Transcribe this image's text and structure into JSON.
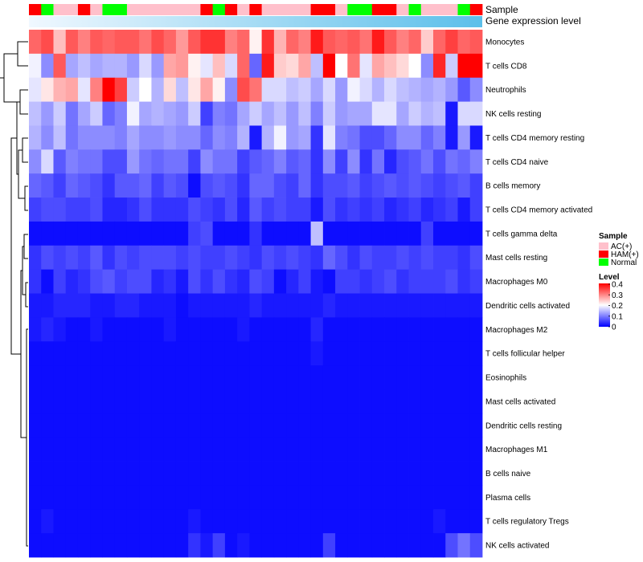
{
  "chart_data": {
    "type": "heatmap",
    "annotation_labels": {
      "sample": "Sample",
      "gene_expression": "Gene expression level"
    },
    "rows": [
      "Monocytes",
      "T cells CD8",
      "Neutrophils",
      "NK cells resting",
      "T cells CD4 memory resting",
      "T cells CD4 naive",
      "B cells memory",
      "T cells CD4 memory activated",
      "T cells gamma delta",
      "Mast cells resting",
      "Macrophages M0",
      "Dendritic cells activated",
      "Macrophages M2",
      "T cells follicular helper",
      "Eosinophils",
      "Mast cells activated",
      "Dendritic cells resting",
      "Macrophages M1",
      "B cells naive",
      "Plasma cells",
      "T cells regulatory  Tregs",
      "NK cells activated"
    ],
    "sample_groups": [
      "HAM(+)",
      "Normal",
      "AC(+)",
      "AC(+)",
      "HAM(+)",
      "AC(+)",
      "Normal",
      "Normal",
      "AC(+)",
      "AC(+)",
      "AC(+)",
      "AC(+)",
      "AC(+)",
      "AC(+)",
      "HAM(+)",
      "Normal",
      "HAM(+)",
      "AC(+)",
      "HAM(+)",
      "AC(+)",
      "AC(+)",
      "AC(+)",
      "AC(+)",
      "HAM(+)",
      "HAM(+)",
      "AC(+)",
      "Normal",
      "Normal",
      "HAM(+)",
      "HAM(+)",
      "AC(+)",
      "Normal",
      "AC(+)",
      "AC(+)",
      "AC(+)",
      "Normal",
      "HAM(+)"
    ],
    "expression_gradient_stops": [
      "#f0f8ff",
      "#5bbfea"
    ],
    "values": [
      [
        0.32,
        0.34,
        0.25,
        0.33,
        0.3,
        0.33,
        0.32,
        0.33,
        0.33,
        0.31,
        0.34,
        0.32,
        0.28,
        0.33,
        0.36,
        0.36,
        0.3,
        0.32,
        0.21,
        0.36,
        0.26,
        0.32,
        0.3,
        0.38,
        0.33,
        0.32,
        0.33,
        0.31,
        0.38,
        0.33,
        0.3,
        0.32,
        0.24,
        0.32,
        0.35,
        0.32,
        0.33
      ],
      [
        0.19,
        0.11,
        0.33,
        0.13,
        0.15,
        0.13,
        0.14,
        0.14,
        0.12,
        0.17,
        0.12,
        0.27,
        0.28,
        0.21,
        0.18,
        0.25,
        0.17,
        0.32,
        0.08,
        0.38,
        0.24,
        0.23,
        0.27,
        0.15,
        0.4,
        0.2,
        0.31,
        0.18,
        0.27,
        0.25,
        0.23,
        0.2,
        0.11,
        0.37,
        0.16,
        0.4,
        0.4
      ],
      [
        0.18,
        0.22,
        0.26,
        0.27,
        0.18,
        0.3,
        0.4,
        0.35,
        0.16,
        0.2,
        0.14,
        0.23,
        0.15,
        0.22,
        0.27,
        0.21,
        0.11,
        0.34,
        0.31,
        0.17,
        0.17,
        0.15,
        0.16,
        0.13,
        0.17,
        0.12,
        0.19,
        0.17,
        0.14,
        0.17,
        0.15,
        0.14,
        0.13,
        0.14,
        0.12,
        0.07,
        0.11
      ],
      [
        0.15,
        0.12,
        0.16,
        0.09,
        0.13,
        0.16,
        0.08,
        0.1,
        0.19,
        0.13,
        0.14,
        0.13,
        0.12,
        0.16,
        0.05,
        0.1,
        0.09,
        0.13,
        0.16,
        0.13,
        0.15,
        0.12,
        0.15,
        0.1,
        0.16,
        0.12,
        0.13,
        0.13,
        0.18,
        0.18,
        0.13,
        0.16,
        0.14,
        0.15,
        0.02,
        0.17,
        0.17
      ],
      [
        0.14,
        0.11,
        0.15,
        0.09,
        0.11,
        0.11,
        0.11,
        0.1,
        0.13,
        0.11,
        0.11,
        0.12,
        0.11,
        0.11,
        0.08,
        0.11,
        0.1,
        0.14,
        0.02,
        0.14,
        0.19,
        0.12,
        0.13,
        0.04,
        0.18,
        0.1,
        0.09,
        0.06,
        0.06,
        0.08,
        0.11,
        0.11,
        0.08,
        0.1,
        0.02,
        0.12,
        0.02
      ],
      [
        0.11,
        0.17,
        0.07,
        0.1,
        0.09,
        0.09,
        0.06,
        0.06,
        0.12,
        0.09,
        0.08,
        0.09,
        0.09,
        0.05,
        0.11,
        0.09,
        0.09,
        0.05,
        0.07,
        0.08,
        0.1,
        0.07,
        0.08,
        0.04,
        0.11,
        0.05,
        0.11,
        0.04,
        0.09,
        0.03,
        0.06,
        0.07,
        0.09,
        0.06,
        0.09,
        0.08,
        0.1
      ],
      [
        0.08,
        0.07,
        0.05,
        0.08,
        0.07,
        0.06,
        0.04,
        0.07,
        0.07,
        0.08,
        0.05,
        0.07,
        0.06,
        0.01,
        0.06,
        0.07,
        0.06,
        0.04,
        0.08,
        0.08,
        0.06,
        0.05,
        0.08,
        0.04,
        0.06,
        0.06,
        0.07,
        0.05,
        0.06,
        0.07,
        0.06,
        0.07,
        0.06,
        0.05,
        0.06,
        0.07,
        0.05
      ],
      [
        0.05,
        0.06,
        0.06,
        0.05,
        0.05,
        0.06,
        0.03,
        0.03,
        0.04,
        0.06,
        0.04,
        0.04,
        0.04,
        0.06,
        0.05,
        0.04,
        0.06,
        0.03,
        0.07,
        0.05,
        0.06,
        0.05,
        0.05,
        0.02,
        0.06,
        0.04,
        0.05,
        0.04,
        0.05,
        0.03,
        0.04,
        0.05,
        0.03,
        0.04,
        0.05,
        0.02,
        0.05
      ],
      [
        0.01,
        0.01,
        0.01,
        0.01,
        0.01,
        0.01,
        0.01,
        0.01,
        0.01,
        0.01,
        0.01,
        0.01,
        0.01,
        0.05,
        0.06,
        0.01,
        0.01,
        0.01,
        0.04,
        0.01,
        0.01,
        0.01,
        0.01,
        0.15,
        0.01,
        0.01,
        0.01,
        0.01,
        0.01,
        0.01,
        0.01,
        0.01,
        0.05,
        0.01,
        0.01,
        0.01,
        0.01
      ],
      [
        0.04,
        0.06,
        0.05,
        0.06,
        0.05,
        0.07,
        0.04,
        0.06,
        0.05,
        0.06,
        0.06,
        0.06,
        0.05,
        0.06,
        0.05,
        0.05,
        0.06,
        0.05,
        0.04,
        0.06,
        0.05,
        0.06,
        0.05,
        0.04,
        0.08,
        0.06,
        0.04,
        0.06,
        0.05,
        0.05,
        0.06,
        0.05,
        0.06,
        0.05,
        0.05,
        0.04,
        0.06
      ],
      [
        0.04,
        0.01,
        0.05,
        0.03,
        0.04,
        0.06,
        0.07,
        0.05,
        0.06,
        0.06,
        0.03,
        0.04,
        0.02,
        0.06,
        0.04,
        0.06,
        0.04,
        0.03,
        0.06,
        0.05,
        0.01,
        0.03,
        0.05,
        0.02,
        0.01,
        0.05,
        0.05,
        0.04,
        0.05,
        0.06,
        0.04,
        0.05,
        0.05,
        0.05,
        0.06,
        0.04,
        0.05
      ],
      [
        0.02,
        0.02,
        0.03,
        0.03,
        0.03,
        0.02,
        0.02,
        0.03,
        0.03,
        0.02,
        0.02,
        0.02,
        0.01,
        0.02,
        0.02,
        0.02,
        0.02,
        0.02,
        0.03,
        0.02,
        0.02,
        0.02,
        0.02,
        0.02,
        0.03,
        0.02,
        0.02,
        0.02,
        0.02,
        0.02,
        0.02,
        0.02,
        0.02,
        0.02,
        0.02,
        0.02,
        0.02
      ],
      [
        0.02,
        0.03,
        0.02,
        0.01,
        0.01,
        0.02,
        0.01,
        0.01,
        0.01,
        0.01,
        0.01,
        0.02,
        0.01,
        0.01,
        0.01,
        0.01,
        0.01,
        0.02,
        0.01,
        0.01,
        0.01,
        0.01,
        0.01,
        0.03,
        0.01,
        0.01,
        0.01,
        0.01,
        0.01,
        0.01,
        0.01,
        0.01,
        0.01,
        0.01,
        0.01,
        0.01,
        0.01
      ],
      [
        0.01,
        0.01,
        0.01,
        0.01,
        0.01,
        0.01,
        0.01,
        0.01,
        0.01,
        0.01,
        0.01,
        0.01,
        0.01,
        0.01,
        0.01,
        0.01,
        0.01,
        0.01,
        0.01,
        0.01,
        0.01,
        0.01,
        0.01,
        0.02,
        0.01,
        0.01,
        0.01,
        0.01,
        0.01,
        0.01,
        0.01,
        0.01,
        0.01,
        0.01,
        0.01,
        0.01,
        0.01
      ],
      [
        0.01,
        0.01,
        0.01,
        0.01,
        0.01,
        0.01,
        0.01,
        0.01,
        0.01,
        0.01,
        0.01,
        0.01,
        0.01,
        0.01,
        0.01,
        0.01,
        0.01,
        0.01,
        0.01,
        0.01,
        0.01,
        0.01,
        0.01,
        0.01,
        0.01,
        0.01,
        0.01,
        0.01,
        0.01,
        0.01,
        0.01,
        0.01,
        0.01,
        0.01,
        0.01,
        0.01,
        0.01
      ],
      [
        0.01,
        0.01,
        0.01,
        0.01,
        0.01,
        0.01,
        0.01,
        0.01,
        0.01,
        0.01,
        0.01,
        0.01,
        0.01,
        0.01,
        0.01,
        0.01,
        0.01,
        0.01,
        0.01,
        0.01,
        0.01,
        0.01,
        0.01,
        0.01,
        0.01,
        0.01,
        0.01,
        0.01,
        0.01,
        0.01,
        0.01,
        0.01,
        0.01,
        0.01,
        0.01,
        0.01,
        0.01
      ],
      [
        0.01,
        0.01,
        0.01,
        0.01,
        0.01,
        0.01,
        0.01,
        0.01,
        0.01,
        0.01,
        0.01,
        0.01,
        0.01,
        0.01,
        0.01,
        0.01,
        0.01,
        0.01,
        0.01,
        0.01,
        0.01,
        0.01,
        0.01,
        0.01,
        0.01,
        0.01,
        0.01,
        0.01,
        0.01,
        0.01,
        0.01,
        0.01,
        0.01,
        0.01,
        0.01,
        0.01,
        0.01
      ],
      [
        0.01,
        0.01,
        0.01,
        0.01,
        0.01,
        0.01,
        0.01,
        0.01,
        0.01,
        0.01,
        0.01,
        0.01,
        0.01,
        0.01,
        0.01,
        0.01,
        0.01,
        0.01,
        0.01,
        0.01,
        0.01,
        0.01,
        0.01,
        0.01,
        0.01,
        0.01,
        0.01,
        0.01,
        0.01,
        0.01,
        0.01,
        0.01,
        0.01,
        0.01,
        0.01,
        0.01,
        0.01
      ],
      [
        0.01,
        0.01,
        0.01,
        0.01,
        0.01,
        0.01,
        0.01,
        0.01,
        0.01,
        0.01,
        0.01,
        0.01,
        0.01,
        0.01,
        0.01,
        0.01,
        0.01,
        0.01,
        0.01,
        0.01,
        0.01,
        0.01,
        0.01,
        0.01,
        0.01,
        0.01,
        0.01,
        0.01,
        0.01,
        0.01,
        0.01,
        0.01,
        0.01,
        0.01,
        0.01,
        0.01,
        0.01
      ],
      [
        0.01,
        0.01,
        0.01,
        0.01,
        0.01,
        0.01,
        0.01,
        0.01,
        0.01,
        0.01,
        0.01,
        0.01,
        0.01,
        0.01,
        0.01,
        0.01,
        0.01,
        0.01,
        0.01,
        0.01,
        0.01,
        0.01,
        0.01,
        0.01,
        0.01,
        0.01,
        0.01,
        0.01,
        0.01,
        0.01,
        0.01,
        0.01,
        0.01,
        0.01,
        0.01,
        0.01,
        0.01
      ],
      [
        0.01,
        0.02,
        0.01,
        0.01,
        0.01,
        0.01,
        0.01,
        0.01,
        0.01,
        0.01,
        0.01,
        0.01,
        0.01,
        0.02,
        0.01,
        0.01,
        0.01,
        0.01,
        0.01,
        0.01,
        0.01,
        0.01,
        0.01,
        0.01,
        0.01,
        0.01,
        0.01,
        0.01,
        0.01,
        0.01,
        0.01,
        0.01,
        0.01,
        0.02,
        0.01,
        0.01,
        0.01
      ],
      [
        0.01,
        0.01,
        0.01,
        0.01,
        0.01,
        0.01,
        0.01,
        0.01,
        0.01,
        0.01,
        0.01,
        0.01,
        0.01,
        0.04,
        0.02,
        0.05,
        0.01,
        0.02,
        0.01,
        0.01,
        0.01,
        0.01,
        0.01,
        0.01,
        0.05,
        0.01,
        0.01,
        0.01,
        0.01,
        0.01,
        0.01,
        0.01,
        0.01,
        0.01,
        0.06,
        0.09,
        0.06
      ]
    ],
    "legend": {
      "sample_title": "Sample",
      "sample_items": [
        {
          "label": "AC(+)",
          "color": "#ffc0cb"
        },
        {
          "label": "HAM(+)",
          "color": "#ff0000"
        },
        {
          "label": "Normal",
          "color": "#00ff00"
        }
      ],
      "level_title": "Level",
      "level_ticks": [
        0.4,
        0.3,
        0.2,
        0.1,
        0
      ],
      "level_tick_labels": [
        "0.4",
        "0.3",
        "0.2",
        "0.1",
        "0"
      ],
      "color_scale": {
        "low": "#0000ff",
        "mid": "#ffffff",
        "high": "#ff0000",
        "min": 0,
        "mid_value": 0.2,
        "max": 0.4
      },
      "legend_position": "right"
    }
  }
}
